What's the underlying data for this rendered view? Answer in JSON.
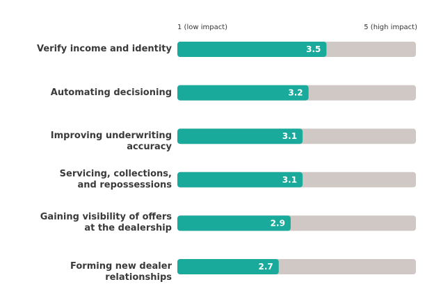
{
  "chart_data": {
    "type": "bar",
    "orientation": "horizontal",
    "scale_min_label": "1 (low impact)",
    "scale_max_label": "5 (high impact)",
    "xlim": [
      1,
      5
    ],
    "categories": [
      [
        "Verify income and identity"
      ],
      [
        "Automating decisioning"
      ],
      [
        "Improving underwriting accuracy"
      ],
      [
        "Servicing, collections,",
        "and repossessions"
      ],
      [
        "Gaining visibility of offers",
        "at the dealership"
      ],
      [
        "Forming new dealer relationships"
      ]
    ],
    "values": [
      3.5,
      3.2,
      3.1,
      3.1,
      2.9,
      2.7
    ],
    "value_labels": [
      "3.5",
      "3.2",
      "3.1",
      "3.1",
      "2.9",
      "2.7"
    ],
    "colors": {
      "bar": "#1aaa9c",
      "track": "#cfc8c4",
      "value_text": "#ffffff"
    }
  }
}
